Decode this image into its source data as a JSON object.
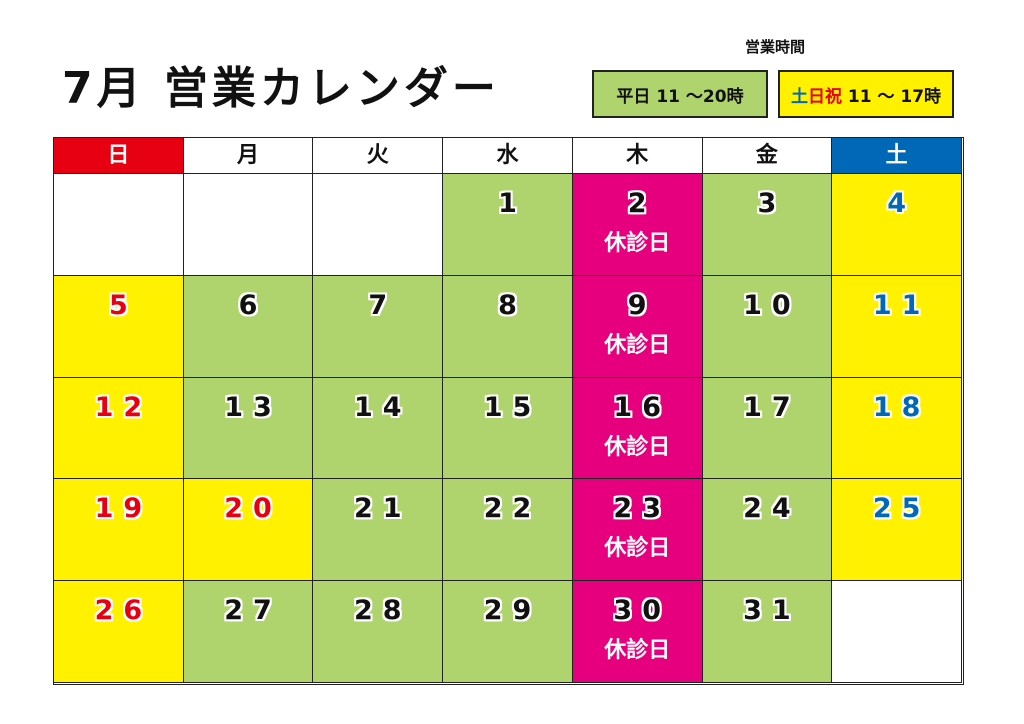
{
  "header": {
    "title": "7月 営業カレンダー"
  },
  "hours": {
    "title": "営業時間",
    "weekday": {
      "label": "平日",
      "time": "11 〜20時"
    },
    "holiday": {
      "label_sat": "土",
      "label_sun": "日祝",
      "time": "11 〜 17時"
    }
  },
  "calendar": {
    "weekdays": [
      "日",
      "月",
      "火",
      "水",
      "木",
      "金",
      "土"
    ],
    "weeks": [
      [
        null,
        null,
        null,
        {
          "day": 1,
          "type": "open"
        },
        {
          "day": 2,
          "type": "closed",
          "note": "休診日"
        },
        {
          "day": 3,
          "type": "open"
        },
        {
          "day": 4,
          "type": "sat"
        }
      ],
      [
        {
          "day": 5,
          "type": "sun"
        },
        {
          "day": 6,
          "type": "open"
        },
        {
          "day": 7,
          "type": "open"
        },
        {
          "day": 8,
          "type": "open"
        },
        {
          "day": 9,
          "type": "closed",
          "note": "休診日"
        },
        {
          "day": 10,
          "type": "open"
        },
        {
          "day": 11,
          "type": "sat"
        }
      ],
      [
        {
          "day": 12,
          "type": "sun"
        },
        {
          "day": 13,
          "type": "open"
        },
        {
          "day": 14,
          "type": "open"
        },
        {
          "day": 15,
          "type": "open"
        },
        {
          "day": 16,
          "type": "closed",
          "note": "休診日"
        },
        {
          "day": 17,
          "type": "open"
        },
        {
          "day": 18,
          "type": "sat"
        }
      ],
      [
        {
          "day": 19,
          "type": "sun"
        },
        {
          "day": 20,
          "type": "holiday"
        },
        {
          "day": 21,
          "type": "open"
        },
        {
          "day": 22,
          "type": "open"
        },
        {
          "day": 23,
          "type": "closed",
          "note": "休診日"
        },
        {
          "day": 24,
          "type": "open"
        },
        {
          "day": 25,
          "type": "sat"
        }
      ],
      [
        {
          "day": 26,
          "type": "sun"
        },
        {
          "day": 27,
          "type": "open"
        },
        {
          "day": 28,
          "type": "open"
        },
        {
          "day": 29,
          "type": "open"
        },
        {
          "day": 30,
          "type": "closed",
          "note": "休診日"
        },
        {
          "day": 31,
          "type": "open"
        },
        null
      ]
    ]
  }
}
